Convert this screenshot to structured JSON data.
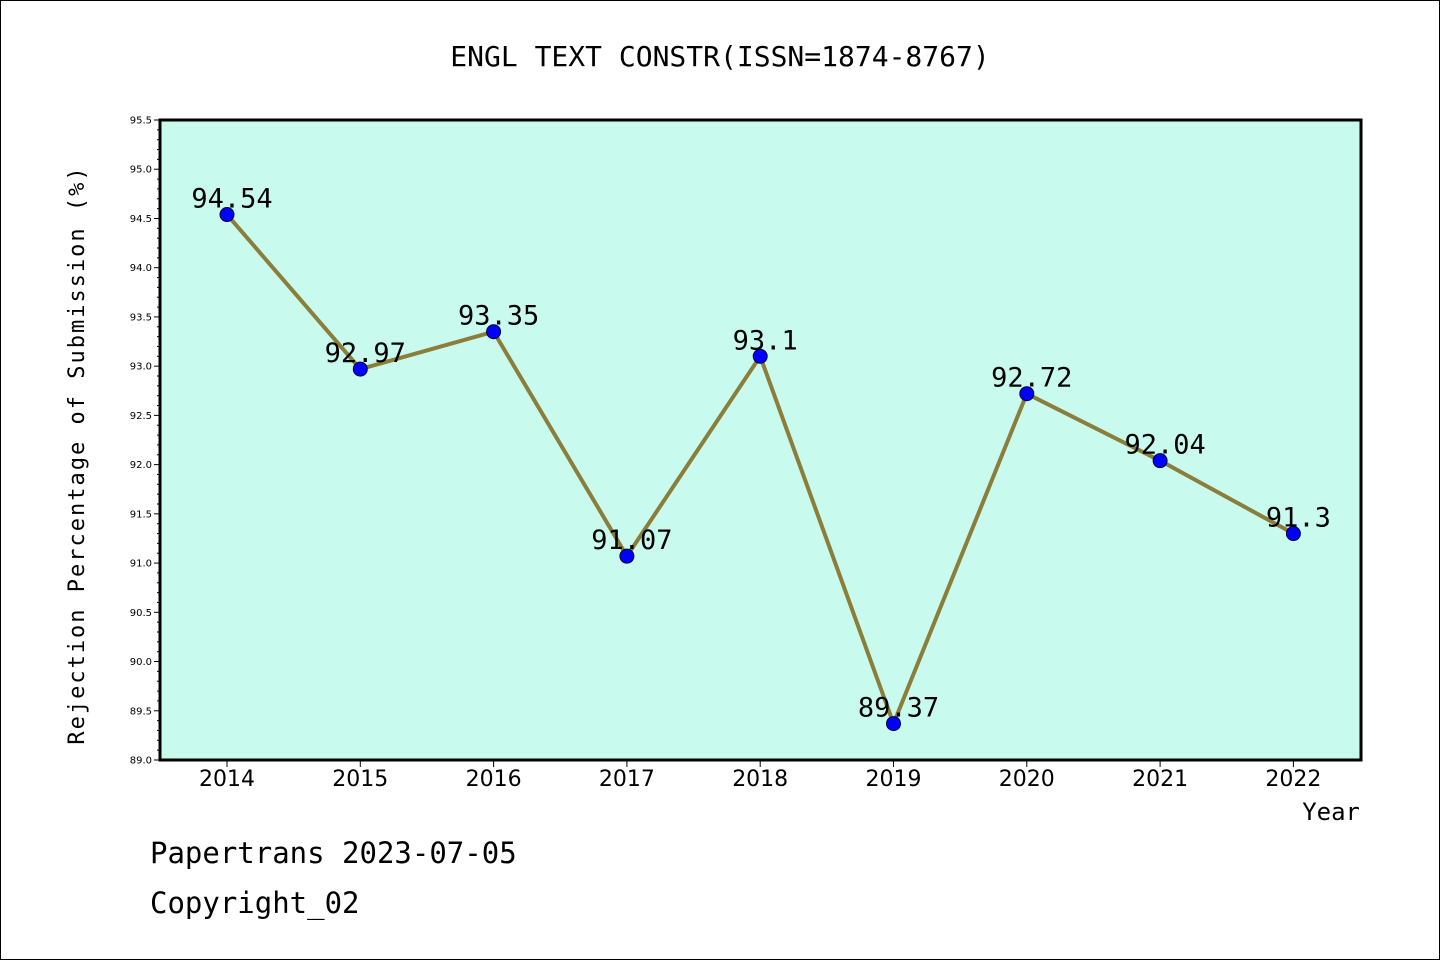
{
  "chart_data": {
    "type": "line",
    "title": "ENGL TEXT CONSTR(ISSN=1874-8767)",
    "xlabel": "Year",
    "ylabel": "Rejection Percentage of Submission (%)",
    "categories": [
      "2014",
      "2015",
      "2016",
      "2017",
      "2018",
      "2019",
      "2020",
      "2021",
      "2022"
    ],
    "series": [
      {
        "values": [
          94.54,
          92.97,
          93.35,
          91.07,
          93.1,
          89.37,
          92.72,
          92.04,
          91.3
        ],
        "value_labels": [
          "94.54",
          "92.97",
          "93.35",
          "91.07",
          "93.1",
          "89.37",
          "92.72",
          "92.04",
          "91.3"
        ]
      }
    ],
    "ylim": [
      89.0,
      95.5
    ],
    "yticks": [
      "89.0",
      "89.5",
      "90.0",
      "90.5",
      "91.0",
      "91.5",
      "92.0",
      "92.5",
      "93.0",
      "93.5",
      "94.0",
      "94.5",
      "95.0",
      "95.5"
    ],
    "grid": false,
    "legend": "none",
    "colors": {
      "plot_background": "#c8fbee",
      "line": "#8b7d3a",
      "marker": "#0000ff",
      "axes": "#000000"
    }
  },
  "footer": {
    "line1": "Papertrans 2023-07-05",
    "line2": "Copyright_02"
  }
}
